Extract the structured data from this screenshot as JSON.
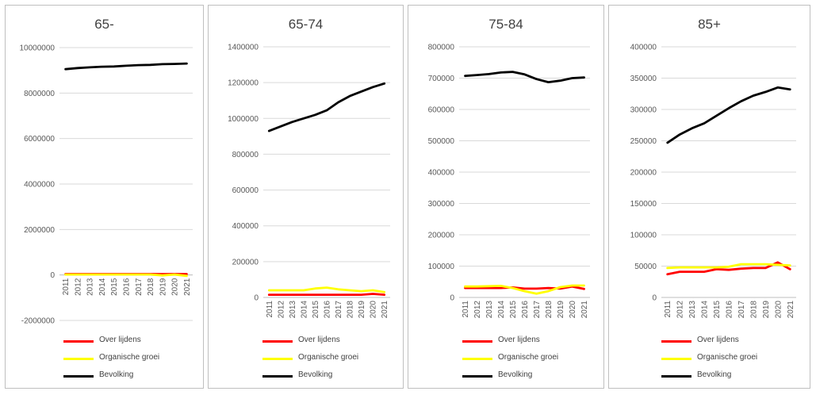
{
  "legend": {
    "overlijdens": "Over lijdens",
    "organisch": "Organische groei",
    "bevolking": "Bevolking"
  },
  "colors": {
    "overlijdens": "#ff0000",
    "organisch": "#ffff00",
    "bevolking": "#000000",
    "grid": "#d9d9d9",
    "axis_text": "#595959"
  },
  "chart_data": [
    {
      "type": "line",
      "title": "65-",
      "categories": [
        "2011",
        "2012",
        "2013",
        "2014",
        "2015",
        "2016",
        "2017",
        "2018",
        "2019",
        "2020",
        "2021"
      ],
      "ylim": [
        -2000000,
        10000000
      ],
      "yticks": [
        "-2000000",
        "0",
        "2000000",
        "4000000",
        "6000000",
        "8000000",
        "10000000"
      ],
      "series": [
        {
          "name": "Over lijdens",
          "key": "overlijdens",
          "values": [
            40000,
            40000,
            40000,
            40000,
            40000,
            40000,
            40000,
            40000,
            40000,
            40000,
            40000
          ]
        },
        {
          "name": "Organische groei",
          "key": "organisch",
          "values": [
            20000,
            20000,
            20000,
            20000,
            20000,
            20000,
            20000,
            20000,
            -20000,
            20000,
            -40000
          ]
        },
        {
          "name": "Bevolking",
          "key": "bevolking",
          "values": [
            9050000,
            9100000,
            9130000,
            9160000,
            9170000,
            9200000,
            9230000,
            9240000,
            9270000,
            9280000,
            9300000
          ]
        }
      ],
      "legend_position": "bottom"
    },
    {
      "type": "line",
      "title": "65-74",
      "categories": [
        "2011",
        "2012",
        "2013",
        "2014",
        "2015",
        "2016",
        "2017",
        "2018",
        "2019",
        "2020",
        "2021"
      ],
      "ylim": [
        0,
        1400000
      ],
      "yticks": [
        "0",
        "200000",
        "400000",
        "600000",
        "800000",
        "1000000",
        "1200000",
        "1400000"
      ],
      "series": [
        {
          "name": "Over lijdens",
          "key": "overlijdens",
          "values": [
            15000,
            15000,
            15000,
            15000,
            15000,
            15000,
            15000,
            15000,
            15000,
            20000,
            15000
          ]
        },
        {
          "name": "Organische groei",
          "key": "organisch",
          "values": [
            40000,
            40000,
            40000,
            40000,
            50000,
            55000,
            45000,
            40000,
            35000,
            40000,
            30000
          ]
        },
        {
          "name": "Bevolking",
          "key": "bevolking",
          "values": [
            930000,
            955000,
            980000,
            1000000,
            1020000,
            1045000,
            1090000,
            1125000,
            1150000,
            1175000,
            1195000
          ]
        }
      ],
      "legend_position": "bottom"
    },
    {
      "type": "line",
      "title": "75-84",
      "categories": [
        "2011",
        "2012",
        "2013",
        "2014",
        "2015",
        "2016",
        "2017",
        "2018",
        "2019",
        "2020",
        "2021"
      ],
      "ylim": [
        0,
        800000
      ],
      "yticks": [
        "0",
        "100000",
        "200000",
        "300000",
        "400000",
        "500000",
        "600000",
        "700000",
        "800000"
      ],
      "series": [
        {
          "name": "Over lijdens",
          "key": "overlijdens",
          "values": [
            30000,
            30000,
            30000,
            30000,
            32000,
            28000,
            28000,
            30000,
            28000,
            35000,
            27000
          ]
        },
        {
          "name": "Organische groei",
          "key": "organisch",
          "values": [
            35000,
            35000,
            36000,
            37000,
            30000,
            20000,
            12000,
            20000,
            33000,
            38000,
            38000
          ]
        },
        {
          "name": "Bevolking",
          "key": "bevolking",
          "values": [
            707000,
            710000,
            713000,
            718000,
            720000,
            712000,
            697000,
            687000,
            692000,
            700000,
            702000
          ]
        }
      ],
      "legend_position": "bottom"
    },
    {
      "type": "line",
      "title": "85+",
      "categories": [
        "2011",
        "2012",
        "2013",
        "2014",
        "2015",
        "2016",
        "2017",
        "2018",
        "2019",
        "2020",
        "2021"
      ],
      "ylim": [
        0,
        400000
      ],
      "yticks": [
        "0",
        "50000",
        "100000",
        "150000",
        "200000",
        "250000",
        "300000",
        "350000",
        "400000"
      ],
      "series": [
        {
          "name": "Over lijdens",
          "key": "overlijdens",
          "values": [
            37000,
            41000,
            41000,
            41000,
            45000,
            44000,
            46000,
            47000,
            47000,
            56000,
            45000
          ]
        },
        {
          "name": "Organische groei",
          "key": "organisch",
          "values": [
            47000,
            48000,
            48000,
            48000,
            48000,
            49000,
            53000,
            53000,
            53000,
            52000,
            51000
          ]
        },
        {
          "name": "Bevolking",
          "key": "bevolking",
          "values": [
            247000,
            260000,
            270000,
            278000,
            290000,
            302000,
            313000,
            322000,
            328000,
            335000,
            332000
          ]
        }
      ],
      "legend_position": "bottom"
    }
  ]
}
